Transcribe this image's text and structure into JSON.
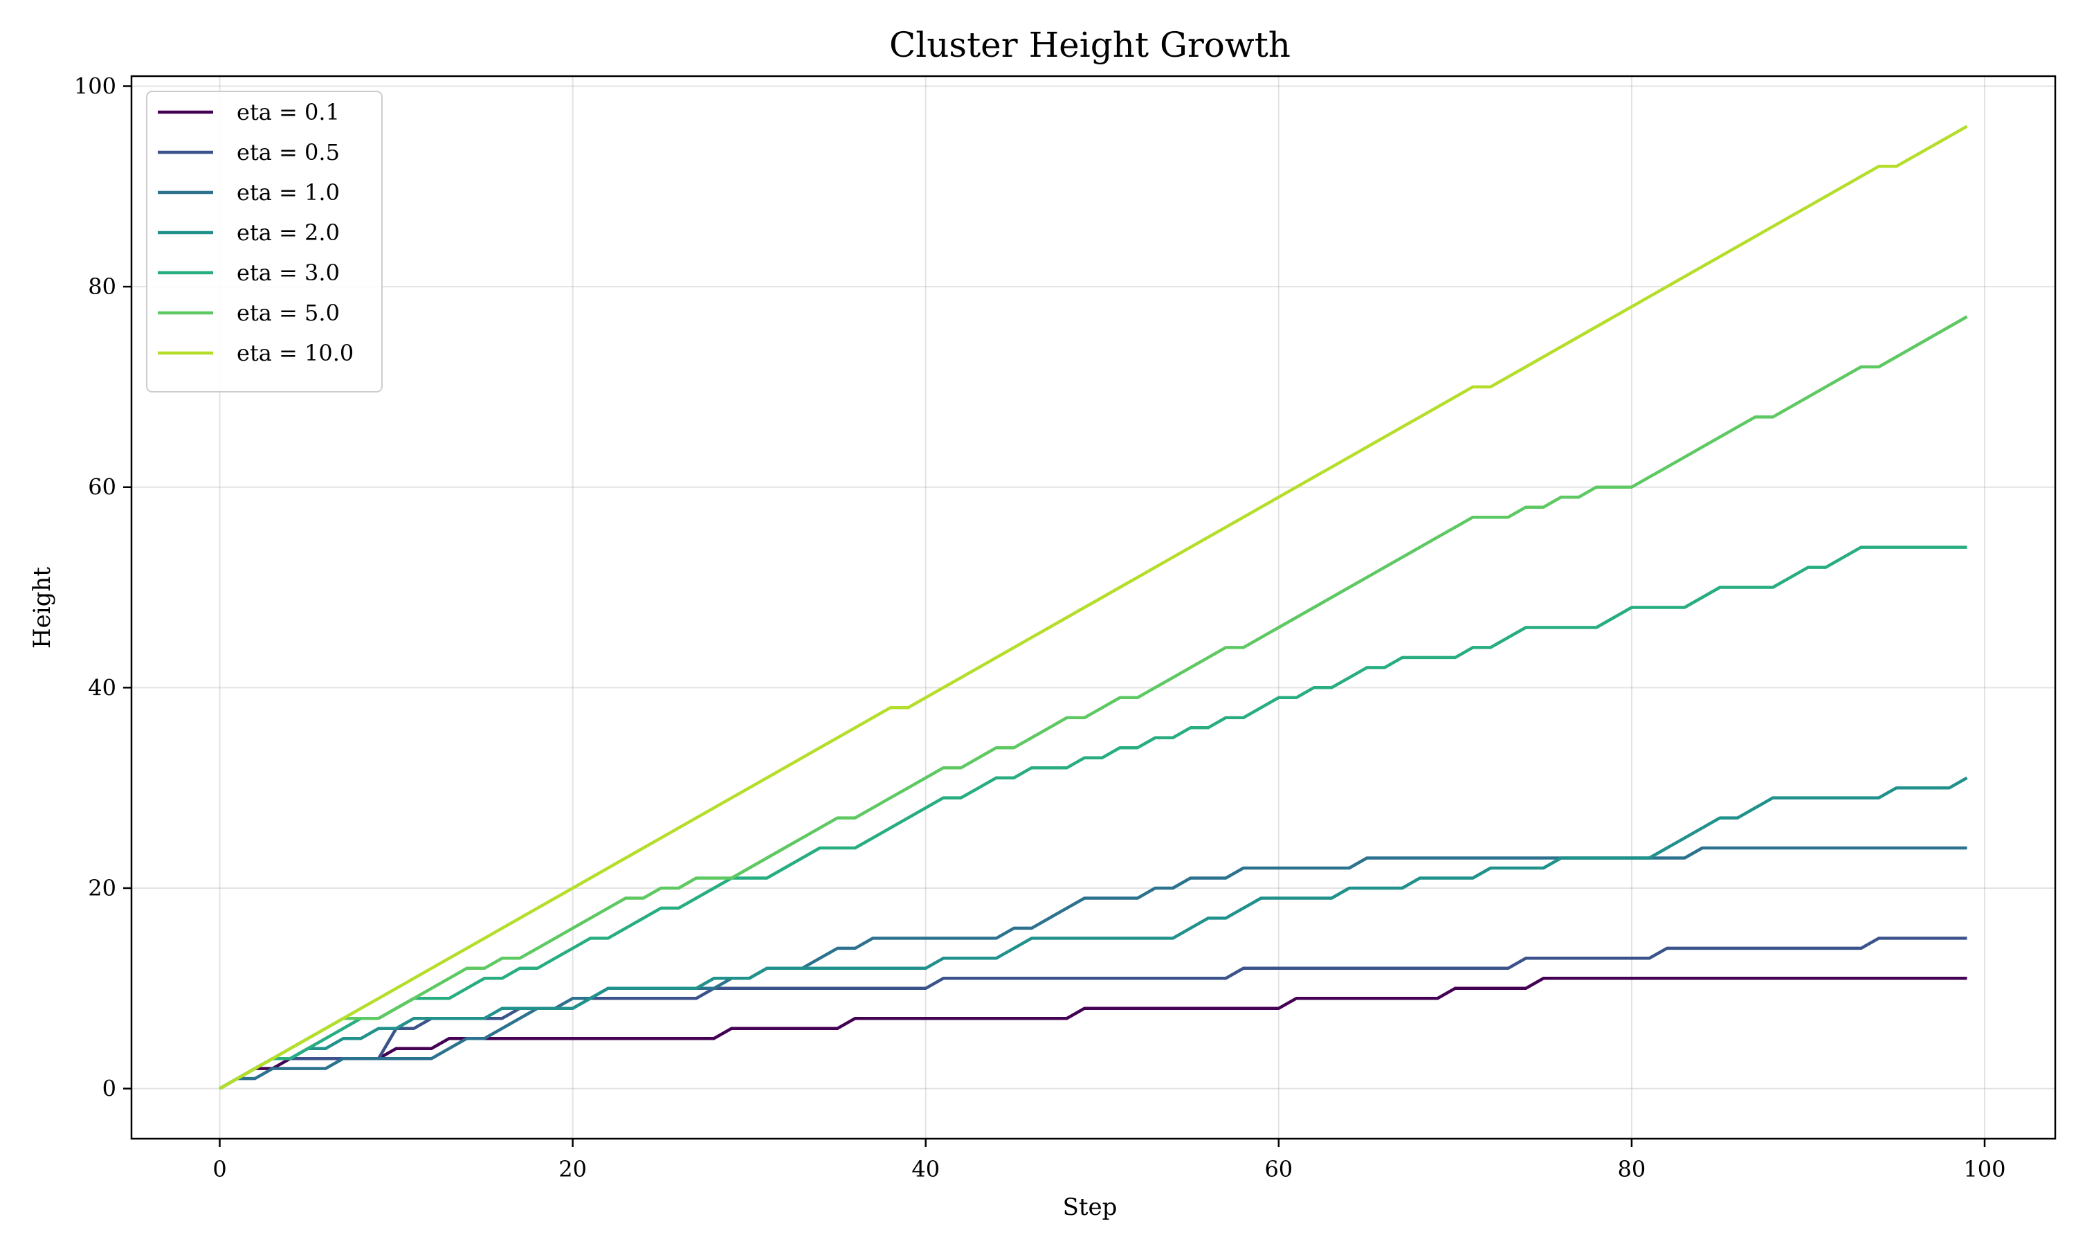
{
  "chart_data": {
    "type": "line",
    "title": "Cluster Height Growth",
    "xlabel": "Step",
    "ylabel": "Height",
    "xlim": [
      -5,
      104
    ],
    "ylim": [
      -5,
      101
    ],
    "xticks": [
      0,
      20,
      40,
      60,
      80,
      100
    ],
    "yticks": [
      0,
      20,
      40,
      60,
      80,
      100
    ],
    "grid": true,
    "legend_position": "top-left",
    "x": [
      0,
      1,
      2,
      3,
      4,
      5,
      6,
      7,
      8,
      9,
      10,
      11,
      12,
      13,
      14,
      15,
      16,
      17,
      18,
      19,
      20,
      21,
      22,
      23,
      24,
      25,
      26,
      27,
      28,
      29,
      30,
      31,
      32,
      33,
      34,
      35,
      36,
      37,
      38,
      39,
      40,
      41,
      42,
      43,
      44,
      45,
      46,
      47,
      48,
      49,
      50,
      51,
      52,
      53,
      54,
      55,
      56,
      57,
      58,
      59,
      60,
      61,
      62,
      63,
      64,
      65,
      66,
      67,
      68,
      69,
      70,
      71,
      72,
      73,
      74,
      75,
      76,
      77,
      78,
      79,
      80,
      81,
      82,
      83,
      84,
      85,
      86,
      87,
      88,
      89,
      90,
      91,
      92,
      93,
      94,
      95,
      96,
      97,
      98,
      99
    ],
    "series": [
      {
        "name": "eta = 0.1",
        "color": "#440154",
        "values": [
          0,
          1,
          2,
          2,
          3,
          3,
          3,
          3,
          3,
          3,
          4,
          4,
          4,
          5,
          5,
          5,
          5,
          5,
          5,
          5,
          5,
          5,
          5,
          5,
          5,
          5,
          5,
          5,
          5,
          6,
          6,
          6,
          6,
          6,
          6,
          6,
          7,
          7,
          7,
          7,
          7,
          7,
          7,
          7,
          7,
          7,
          7,
          7,
          7,
          8,
          8,
          8,
          8,
          8,
          8,
          8,
          8,
          8,
          8,
          8,
          8,
          9,
          9,
          9,
          9,
          9,
          9,
          9,
          9,
          9,
          10,
          10,
          10,
          10,
          10,
          11,
          11,
          11,
          11,
          11,
          11,
          11,
          11,
          11,
          11,
          11,
          11,
          11,
          11,
          11,
          11,
          11,
          11,
          11,
          11,
          11,
          11,
          11,
          11,
          11
        ]
      },
      {
        "name": "eta = 0.5",
        "color": "#3b528b",
        "values": [
          0,
          1,
          2,
          2,
          3,
          3,
          3,
          3,
          3,
          3,
          3,
          3,
          4,
          4,
          5,
          5,
          5,
          5,
          5,
          5,
          5,
          5,
          5,
          5,
          5,
          5,
          5,
          5,
          5,
          6,
          6,
          6,
          6,
          6,
          6,
          6,
          7,
          7,
          7,
          7,
          7,
          7,
          7,
          7,
          7,
          7,
          7,
          7,
          7,
          7,
          7,
          7,
          7,
          7,
          7,
          7,
          7,
          7,
          7,
          7,
          7,
          7,
          7,
          7,
          7,
          7,
          7,
          7,
          7,
          7,
          7,
          7,
          7,
          7,
          7,
          7,
          7,
          7,
          7,
          7,
          7,
          7,
          7,
          7,
          7,
          7,
          7,
          7,
          7,
          7,
          7,
          7,
          7,
          7,
          7,
          7,
          7,
          7,
          7,
          7
        ]
      }
    ]
  }
}
